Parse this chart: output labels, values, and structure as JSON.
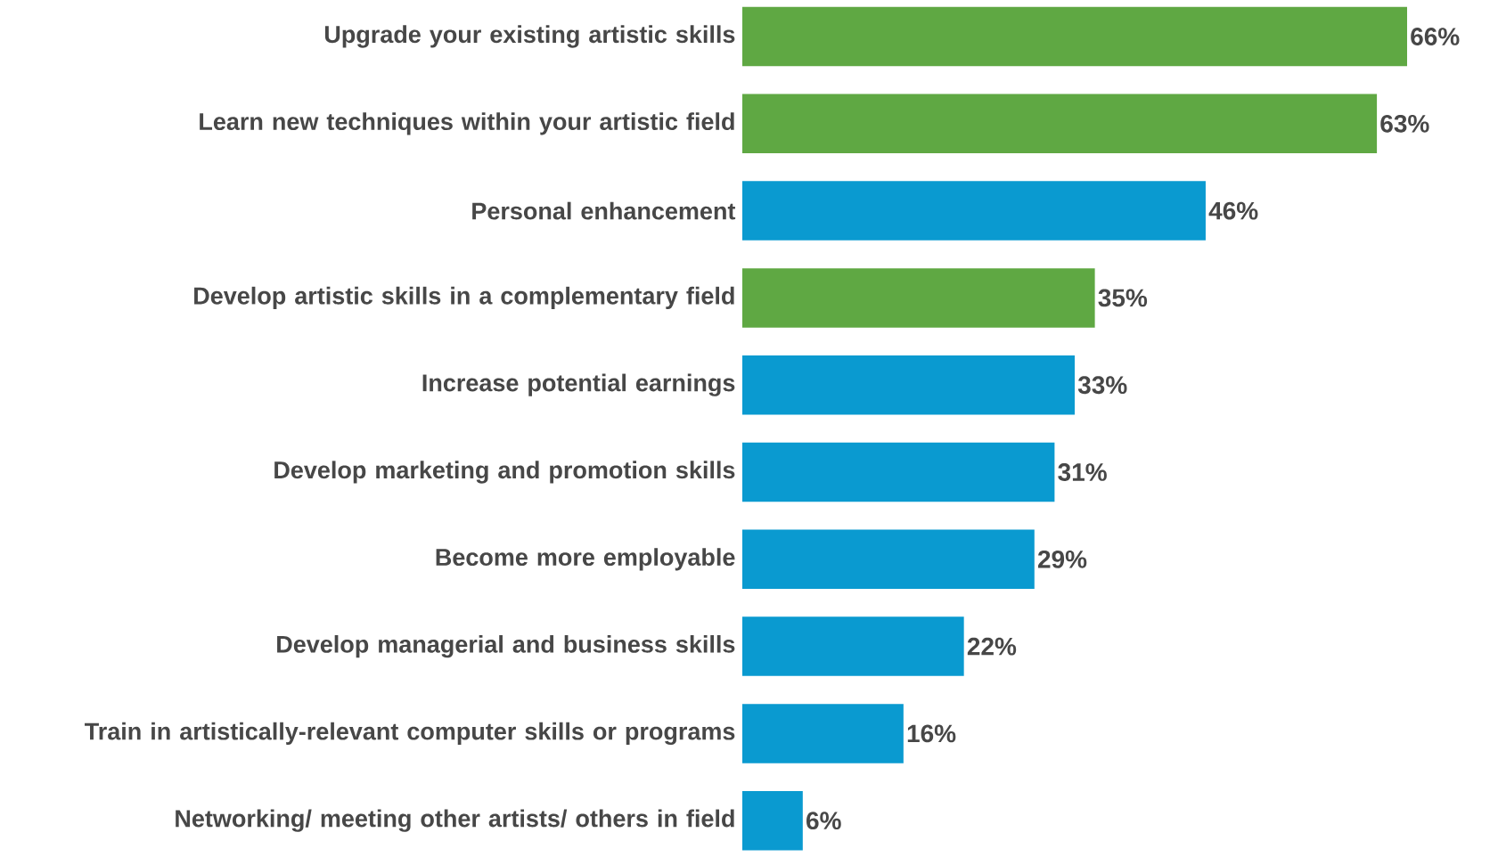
{
  "chart_data": {
    "type": "bar",
    "orientation": "horizontal",
    "categories": [
      "Upgrade your existing artistic skills",
      "Learn new techniques within your artistic field",
      "Personal enhancement",
      "Develop artistic skills in a complementary field",
      "Increase potential earnings",
      "Develop marketing and promotion skills",
      "Become more employable",
      "Develop managerial and business skills",
      "Train in artistically-relevant computer skills or programs",
      "Networking/ meeting other artists/ others in field"
    ],
    "values": [
      66,
      63,
      46,
      35,
      33,
      31,
      29,
      22,
      16,
      6
    ],
    "colors": [
      "#5fa843",
      "#5fa843",
      "#0a9ad0",
      "#5fa843",
      "#0a9ad0",
      "#0a9ad0",
      "#0a9ad0",
      "#0a9ad0",
      "#0a9ad0",
      "#0a9ad0"
    ],
    "value_labels": [
      "66%",
      "63%",
      "46%",
      "35%",
      "33%",
      "31%",
      "29%",
      "22%",
      "16%",
      "6%"
    ]
  }
}
